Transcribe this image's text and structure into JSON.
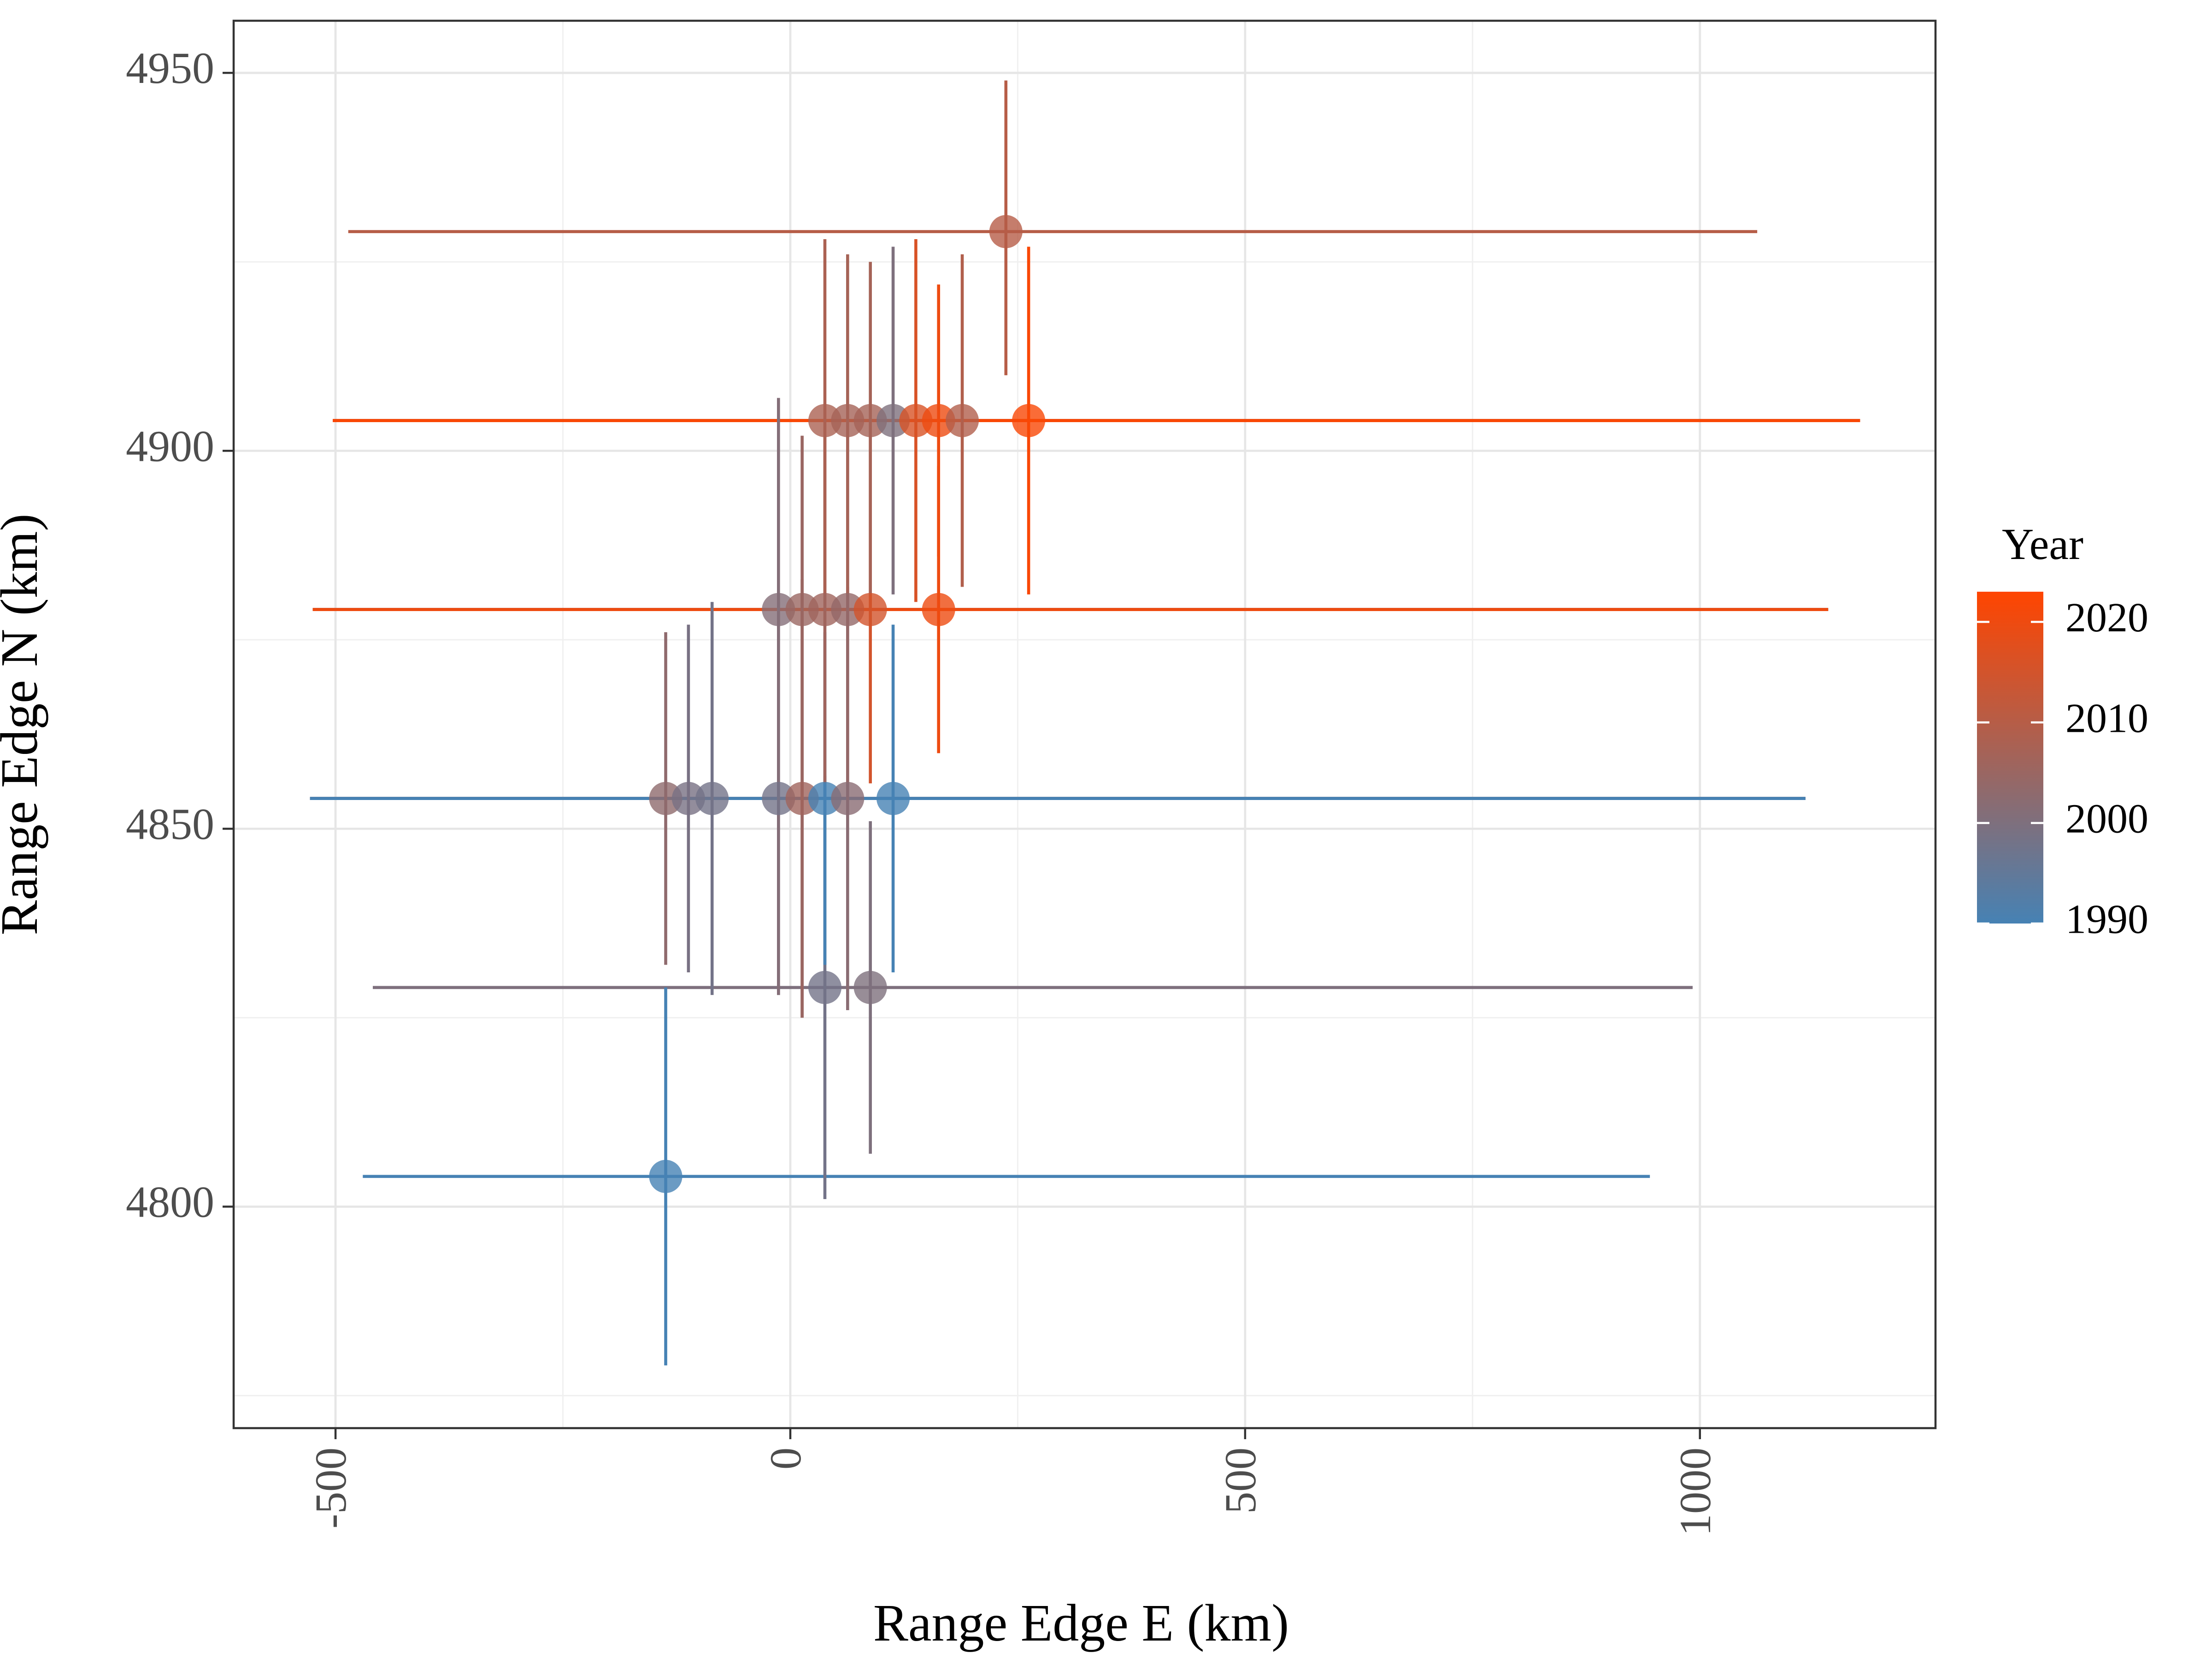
{
  "chart_data": {
    "type": "scatter",
    "x_label": "Range Edge E (km)",
    "y_label": "Range Edge N (km)",
    "xlim": [
      -612,
      1259
    ],
    "ylim": [
      4770.7,
      4956.9
    ],
    "xticks": [
      -500,
      0,
      500,
      1000
    ],
    "yticks": [
      4800,
      4850,
      4900,
      4950
    ],
    "xminor": [
      -250,
      250,
      750
    ],
    "yminor": [
      4775,
      4825,
      4875,
      4925
    ],
    "grid": true,
    "legend_title": "Year",
    "legend_ticks": [
      1990,
      2000,
      2010,
      2020
    ],
    "color_limits": [
      1990,
      2023
    ],
    "color_low": "#4682b4",
    "color_high": "#ff4500",
    "points": [
      {
        "x": -137,
        "y": 4804,
        "x_low": -470,
        "x_high": 945,
        "y_low": 4779,
        "y_high": 4829,
        "year": 1990
      },
      {
        "x": 38,
        "y": 4829,
        "x_low": -459,
        "x_high": 992,
        "y_low": 4801,
        "y_high": 4857,
        "year": 1998
      },
      {
        "x": 88,
        "y": 4829,
        "x_low": -459,
        "x_high": 992,
        "y_low": 4807,
        "y_high": 4851,
        "year": 2000
      },
      {
        "x": -137,
        "y": 4854,
        "x_low": -528,
        "x_high": 1116,
        "y_low": 4832,
        "y_high": 4876,
        "year": 2003
      },
      {
        "x": -112,
        "y": 4854,
        "x_low": -528,
        "x_high": 1116,
        "y_low": 4831,
        "y_high": 4877,
        "year": 1999
      },
      {
        "x": -86,
        "y": 4854,
        "x_low": -528,
        "x_high": 1116,
        "y_low": 4828,
        "y_high": 4880,
        "year": 1998
      },
      {
        "x": -13,
        "y": 4854,
        "x_low": -528,
        "x_high": 1116,
        "y_low": 4828,
        "y_high": 4880,
        "year": 1998
      },
      {
        "x": 13,
        "y": 4854,
        "x_low": -528,
        "x_high": 1116,
        "y_low": 4825,
        "y_high": 4883,
        "year": 2006
      },
      {
        "x": 38,
        "y": 4854,
        "x_low": -528,
        "x_high": 1116,
        "y_low": 4832,
        "y_high": 4876,
        "year": 1990
      },
      {
        "x": 63,
        "y": 4854,
        "x_low": -528,
        "x_high": 1116,
        "y_low": 4826,
        "y_high": 4882,
        "year": 2002
      },
      {
        "x": 113,
        "y": 4854,
        "x_low": -528,
        "x_high": 1116,
        "y_low": 4831,
        "y_high": 4877,
        "year": 1990
      },
      {
        "x": -13,
        "y": 4879,
        "x_low": -525,
        "x_high": 1141,
        "y_low": 4828,
        "y_high": 4907,
        "year": 2001
      },
      {
        "x": 13,
        "y": 4879,
        "x_low": -525,
        "x_high": 1141,
        "y_low": 4825,
        "y_high": 4902,
        "year": 2005
      },
      {
        "x": 38,
        "y": 4879,
        "x_low": -525,
        "x_high": 1141,
        "y_low": 4856,
        "y_high": 4902,
        "year": 2006
      },
      {
        "x": 63,
        "y": 4879,
        "x_low": -525,
        "x_high": 1141,
        "y_low": 4856,
        "y_high": 4902,
        "year": 2004
      },
      {
        "x": 88,
        "y": 4879,
        "x_low": -525,
        "x_high": 1141,
        "y_low": 4856,
        "y_high": 4902,
        "year": 2015
      },
      {
        "x": 163,
        "y": 4879,
        "x_low": -525,
        "x_high": 1141,
        "y_low": 4860,
        "y_high": 4898,
        "year": 2020
      },
      {
        "x": 38,
        "y": 4904,
        "x_low": -503,
        "x_high": 1176,
        "y_low": 4881,
        "y_high": 4928,
        "year": 2008
      },
      {
        "x": 63,
        "y": 4904,
        "x_low": -503,
        "x_high": 1176,
        "y_low": 4881,
        "y_high": 4926,
        "year": 2007
      },
      {
        "x": 88,
        "y": 4904,
        "x_low": -503,
        "x_high": 1176,
        "y_low": 4881,
        "y_high": 4925,
        "year": 2007
      },
      {
        "x": 113,
        "y": 4904,
        "x_low": -503,
        "x_high": 1176,
        "y_low": 4881,
        "y_high": 4927,
        "year": 2000
      },
      {
        "x": 138,
        "y": 4904,
        "x_low": -503,
        "x_high": 1176,
        "y_low": 4880,
        "y_high": 4928,
        "year": 2016
      },
      {
        "x": 163,
        "y": 4904,
        "x_low": -503,
        "x_high": 1176,
        "y_low": 4886,
        "y_high": 4922,
        "year": 2020
      },
      {
        "x": 189,
        "y": 4904,
        "x_low": -503,
        "x_high": 1176,
        "y_low": 4882,
        "y_high": 4926,
        "year": 2009
      },
      {
        "x": 262,
        "y": 4904,
        "x_low": -503,
        "x_high": 1176,
        "y_low": 4881,
        "y_high": 4927,
        "year": 2022
      },
      {
        "x": 237,
        "y": 4929,
        "x_low": -486,
        "x_high": 1063,
        "y_low": 4910,
        "y_high": 4949,
        "year": 2010
      }
    ]
  }
}
